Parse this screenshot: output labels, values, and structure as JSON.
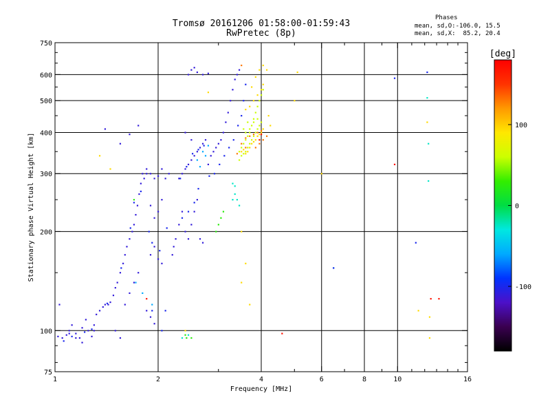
{
  "header": {
    "title_line1": "Tromsø 20161206 01:58:00-01:59:43",
    "title_line2": "RwPretec (8p)",
    "stats_heading": "Phases",
    "stats_o": "mean, sd,O:-106.0, 15.5",
    "stats_x": "mean, sd,X:  85.2, 20.4"
  },
  "chart_data": {
    "type": "scatter",
    "xlabel": "Frequency [MHz]",
    "ylabel": "Stationary phase Virtual Height [km]",
    "x_scale": "log",
    "y_scale": "log",
    "xlim": [
      1,
      16
    ],
    "ylim": [
      75,
      750
    ],
    "x_ticks": [
      1,
      2,
      4,
      6,
      8,
      10,
      16
    ],
    "x_tick_labels": [
      "1",
      "2",
      "4",
      "6",
      "8",
      "10",
      "16"
    ],
    "y_ticks": [
      75,
      100,
      200,
      300,
      400,
      500,
      600,
      750
    ],
    "y_tick_labels": [
      "75",
      "100",
      "200",
      "300",
      "400",
      "500",
      "600",
      "750"
    ],
    "grid": true,
    "colorbar": {
      "label": "[deg]",
      "range": [
        -180,
        180
      ],
      "ticks": [
        100,
        0,
        -100
      ],
      "tick_labels": [
        "100",
        "0",
        "-100"
      ],
      "colors": [
        "#000000",
        "#3a0050",
        "#4c10c8",
        "#0033ff",
        "#00aaff",
        "#00e8e0",
        "#00dd44",
        "#33ee00",
        "#ccff00",
        "#ffe800",
        "#ff9900",
        "#ff3300",
        "#ff0000"
      ]
    },
    "series": [
      {
        "phase": -110,
        "pts": [
          [
            1.02,
            96
          ],
          [
            1.05,
            95
          ],
          [
            1.08,
            97
          ],
          [
            1.1,
            100
          ],
          [
            1.12,
            104
          ],
          [
            1.15,
            98
          ],
          [
            1.18,
            95
          ],
          [
            1.2,
            102
          ],
          [
            1.23,
            108
          ],
          [
            1.25,
            100
          ],
          [
            1.28,
            96
          ],
          [
            1.3,
            104
          ],
          [
            1.32,
            112
          ],
          [
            1.35,
            115
          ],
          [
            1.38,
            118
          ],
          [
            1.4,
            120
          ],
          [
            1.43,
            120
          ],
          [
            1.45,
            122
          ],
          [
            1.48,
            128
          ],
          [
            1.5,
            135
          ],
          [
            1.52,
            140
          ],
          [
            1.55,
            150
          ],
          [
            1.58,
            160
          ],
          [
            1.6,
            170
          ],
          [
            1.62,
            180
          ],
          [
            1.65,
            190
          ],
          [
            1.68,
            200
          ],
          [
            1.7,
            210
          ],
          [
            1.72,
            225
          ],
          [
            1.74,
            240
          ],
          [
            1.76,
            260
          ],
          [
            1.78,
            280
          ],
          [
            1.8,
            300
          ],
          [
            1.82,
            290
          ],
          [
            1.85,
            310
          ],
          [
            1.9,
            300
          ],
          [
            1.95,
            290
          ],
          [
            2.0,
            295
          ],
          [
            2.05,
            310
          ],
          [
            2.1,
            290
          ],
          [
            2.15,
            300
          ],
          [
            2.2,
            170
          ],
          [
            2.22,
            180
          ],
          [
            2.25,
            190
          ],
          [
            2.3,
            210
          ],
          [
            2.35,
            230
          ],
          [
            2.4,
            200
          ],
          [
            2.45,
            190
          ],
          [
            2.5,
            210
          ],
          [
            2.55,
            230
          ],
          [
            2.6,
            250
          ],
          [
            2.65,
            190
          ],
          [
            2.7,
            185
          ],
          [
            2.3,
            290
          ],
          [
            2.35,
            300
          ],
          [
            2.4,
            310
          ],
          [
            2.45,
            320
          ],
          [
            2.5,
            330
          ],
          [
            2.55,
            340
          ],
          [
            2.6,
            350
          ],
          [
            2.65,
            360
          ],
          [
            2.7,
            370
          ],
          [
            2.75,
            380
          ],
          [
            2.8,
            320
          ],
          [
            2.85,
            340
          ],
          [
            2.9,
            350
          ],
          [
            2.95,
            360
          ],
          [
            3.0,
            370
          ],
          [
            3.05,
            380
          ],
          [
            3.1,
            400
          ],
          [
            3.15,
            430
          ],
          [
            3.2,
            460
          ],
          [
            3.25,
            500
          ],
          [
            3.3,
            540
          ],
          [
            3.35,
            580
          ],
          [
            3.4,
            600
          ],
          [
            3.45,
            620
          ],
          [
            2.45,
            600
          ],
          [
            2.5,
            620
          ],
          [
            2.55,
            630
          ],
          [
            2.6,
            610
          ],
          [
            2.7,
            600
          ],
          [
            2.8,
            605
          ],
          [
            1.9,
            170
          ],
          [
            1.95,
            180
          ],
          [
            2.0,
            165
          ],
          [
            2.05,
            160
          ],
          [
            1.75,
            150
          ],
          [
            1.7,
            140
          ],
          [
            1.65,
            130
          ],
          [
            1.6,
            120
          ],
          [
            1.85,
            115
          ],
          [
            1.9,
            110
          ],
          [
            1.95,
            105
          ],
          [
            1.3,
            100
          ],
          [
            1.2,
            92
          ],
          [
            1.15,
            95
          ],
          [
            1.1,
            98
          ],
          [
            1.5,
            100
          ],
          [
            1.55,
            95
          ],
          [
            1.03,
            120
          ],
          [
            1.4,
            410
          ],
          [
            1.55,
            370
          ],
          [
            1.65,
            395
          ],
          [
            1.75,
            420
          ],
          [
            1.85,
            300
          ],
          [
            1.9,
            240
          ],
          [
            1.95,
            220
          ],
          [
            2.0,
            230
          ],
          [
            2.05,
            250
          ],
          [
            2.4,
            400
          ],
          [
            2.5,
            380
          ]
        ]
      },
      {
        "phase": -100,
        "pts": [
          [
            1.06,
            93
          ],
          [
            1.12,
            96
          ],
          [
            1.22,
            99
          ],
          [
            1.28,
            101
          ],
          [
            1.42,
            121
          ],
          [
            1.56,
            155
          ],
          [
            1.66,
            205
          ],
          [
            1.7,
            245
          ],
          [
            1.78,
            265
          ],
          [
            1.88,
            200
          ],
          [
            1.92,
            185
          ],
          [
            2.02,
            175
          ],
          [
            2.12,
            205
          ],
          [
            2.32,
            290
          ],
          [
            2.42,
            315
          ],
          [
            2.52,
            345
          ],
          [
            2.62,
            355
          ],
          [
            2.72,
            365
          ],
          [
            2.82,
            295
          ],
          [
            2.92,
            300
          ],
          [
            3.02,
            320
          ],
          [
            3.12,
            340
          ],
          [
            3.22,
            360
          ],
          [
            3.32,
            380
          ],
          [
            3.42,
            420
          ],
          [
            3.5,
            450
          ],
          [
            3.55,
            500
          ],
          [
            3.6,
            560
          ],
          [
            2.35,
            220
          ],
          [
            2.45,
            230
          ],
          [
            2.55,
            245
          ],
          [
            2.62,
            270
          ]
        ]
      },
      {
        "phase": -60,
        "pts": [
          [
            2.6,
            330
          ],
          [
            2.7,
            350
          ],
          [
            2.8,
            365
          ],
          [
            2.75,
            340
          ],
          [
            2.65,
            315
          ],
          [
            1.72,
            140
          ],
          [
            1.8,
            130
          ],
          [
            1.92,
            120
          ]
        ]
      },
      {
        "phase": -25,
        "pts": [
          [
            3.3,
            280
          ],
          [
            3.35,
            260
          ],
          [
            3.4,
            250
          ],
          [
            3.45,
            240
          ],
          [
            3.3,
            250
          ],
          [
            3.35,
            275
          ],
          [
            2.35,
            95
          ],
          [
            2.45,
            97
          ],
          [
            6.5,
            155
          ],
          [
            12.3,
            285
          ],
          [
            12.3,
            370
          ],
          [
            12.2,
            510
          ]
        ]
      },
      {
        "phase": 25,
        "pts": [
          [
            3.1,
            230
          ],
          [
            3.0,
            210
          ],
          [
            2.95,
            200
          ],
          [
            3.05,
            220
          ],
          [
            2.4,
            97
          ],
          [
            2.42,
            95
          ],
          [
            1.7,
            250
          ],
          [
            2.5,
            95
          ]
        ]
      },
      {
        "phase": 60,
        "pts": [
          [
            3.45,
            330
          ],
          [
            3.5,
            340
          ],
          [
            3.55,
            345
          ],
          [
            3.6,
            350
          ],
          [
            3.65,
            360
          ],
          [
            3.7,
            370
          ],
          [
            3.75,
            380
          ],
          [
            3.8,
            390
          ],
          [
            3.85,
            400
          ],
          [
            3.9,
            410
          ],
          [
            3.95,
            420
          ],
          [
            4.0,
            430
          ],
          [
            3.6,
            400
          ],
          [
            3.7,
            410
          ],
          [
            3.8,
            430
          ],
          [
            3.9,
            440
          ],
          [
            3.5,
            360
          ],
          [
            3.45,
            350
          ],
          [
            3.55,
            370
          ],
          [
            3.6,
            380
          ],
          [
            3.65,
            390
          ],
          [
            3.7,
            400
          ],
          [
            3.75,
            420
          ],
          [
            3.8,
            440
          ],
          [
            3.85,
            460
          ],
          [
            3.9,
            480
          ],
          [
            3.95,
            500
          ],
          [
            4.0,
            520
          ],
          [
            4.05,
            540
          ],
          [
            3.55,
            410
          ],
          [
            3.65,
            430
          ]
        ]
      },
      {
        "phase": 95,
        "pts": [
          [
            3.5,
            350
          ],
          [
            3.55,
            355
          ],
          [
            3.6,
            345
          ],
          [
            3.65,
            350
          ],
          [
            3.7,
            360
          ],
          [
            3.75,
            370
          ],
          [
            3.8,
            375
          ],
          [
            3.85,
            380
          ],
          [
            3.9,
            390
          ],
          [
            3.95,
            395
          ],
          [
            4.0,
            400
          ],
          [
            4.05,
            410
          ],
          [
            3.6,
            470
          ],
          [
            3.7,
            480
          ],
          [
            3.8,
            500
          ],
          [
            3.9,
            520
          ],
          [
            4.0,
            540
          ],
          [
            4.05,
            560
          ],
          [
            3.75,
            550
          ],
          [
            3.85,
            590
          ],
          [
            3.95,
            620
          ],
          [
            4.05,
            640
          ],
          [
            4.15,
            620
          ],
          [
            4.2,
            450
          ],
          [
            4.25,
            420
          ],
          [
            5.1,
            610
          ],
          [
            5.0,
            500
          ],
          [
            6.0,
            300
          ],
          [
            1.35,
            340
          ],
          [
            1.45,
            310
          ],
          [
            2.8,
            530
          ],
          [
            2.4,
            100
          ],
          [
            3.5,
            200
          ],
          [
            3.6,
            160
          ],
          [
            3.5,
            140
          ],
          [
            3.7,
            120
          ],
          [
            12.4,
            110
          ],
          [
            12.4,
            95
          ],
          [
            11.5,
            115
          ],
          [
            12.2,
            430
          ]
        ]
      },
      {
        "phase": 130,
        "pts": [
          [
            3.5,
            370
          ],
          [
            3.6,
            385
          ],
          [
            3.7,
            390
          ],
          [
            3.8,
            395
          ],
          [
            3.9,
            400
          ],
          [
            4.0,
            405
          ],
          [
            3.85,
            360
          ],
          [
            3.95,
            370
          ],
          [
            4.05,
            380
          ],
          [
            4.15,
            390
          ],
          [
            3.5,
            640
          ],
          [
            3.6,
            360
          ],
          [
            3.4,
            345
          ]
        ]
      },
      {
        "phase": 170,
        "pts": [
          [
            4.6,
            98
          ],
          [
            9.8,
            320
          ],
          [
            13.2,
            125
          ],
          [
            12.5,
            125
          ],
          [
            1.85,
            125
          ],
          [
            4.0,
            395
          ],
          [
            3.95,
            380
          ]
        ]
      },
      {
        "phase": -100,
        "pts": [
          [
            9.8,
            585
          ],
          [
            11.3,
            185
          ],
          [
            12.2,
            610
          ],
          [
            6.5,
            155
          ],
          [
            1.92,
            115
          ],
          [
            2.05,
            100
          ],
          [
            2.1,
            115
          ]
        ]
      }
    ]
  }
}
